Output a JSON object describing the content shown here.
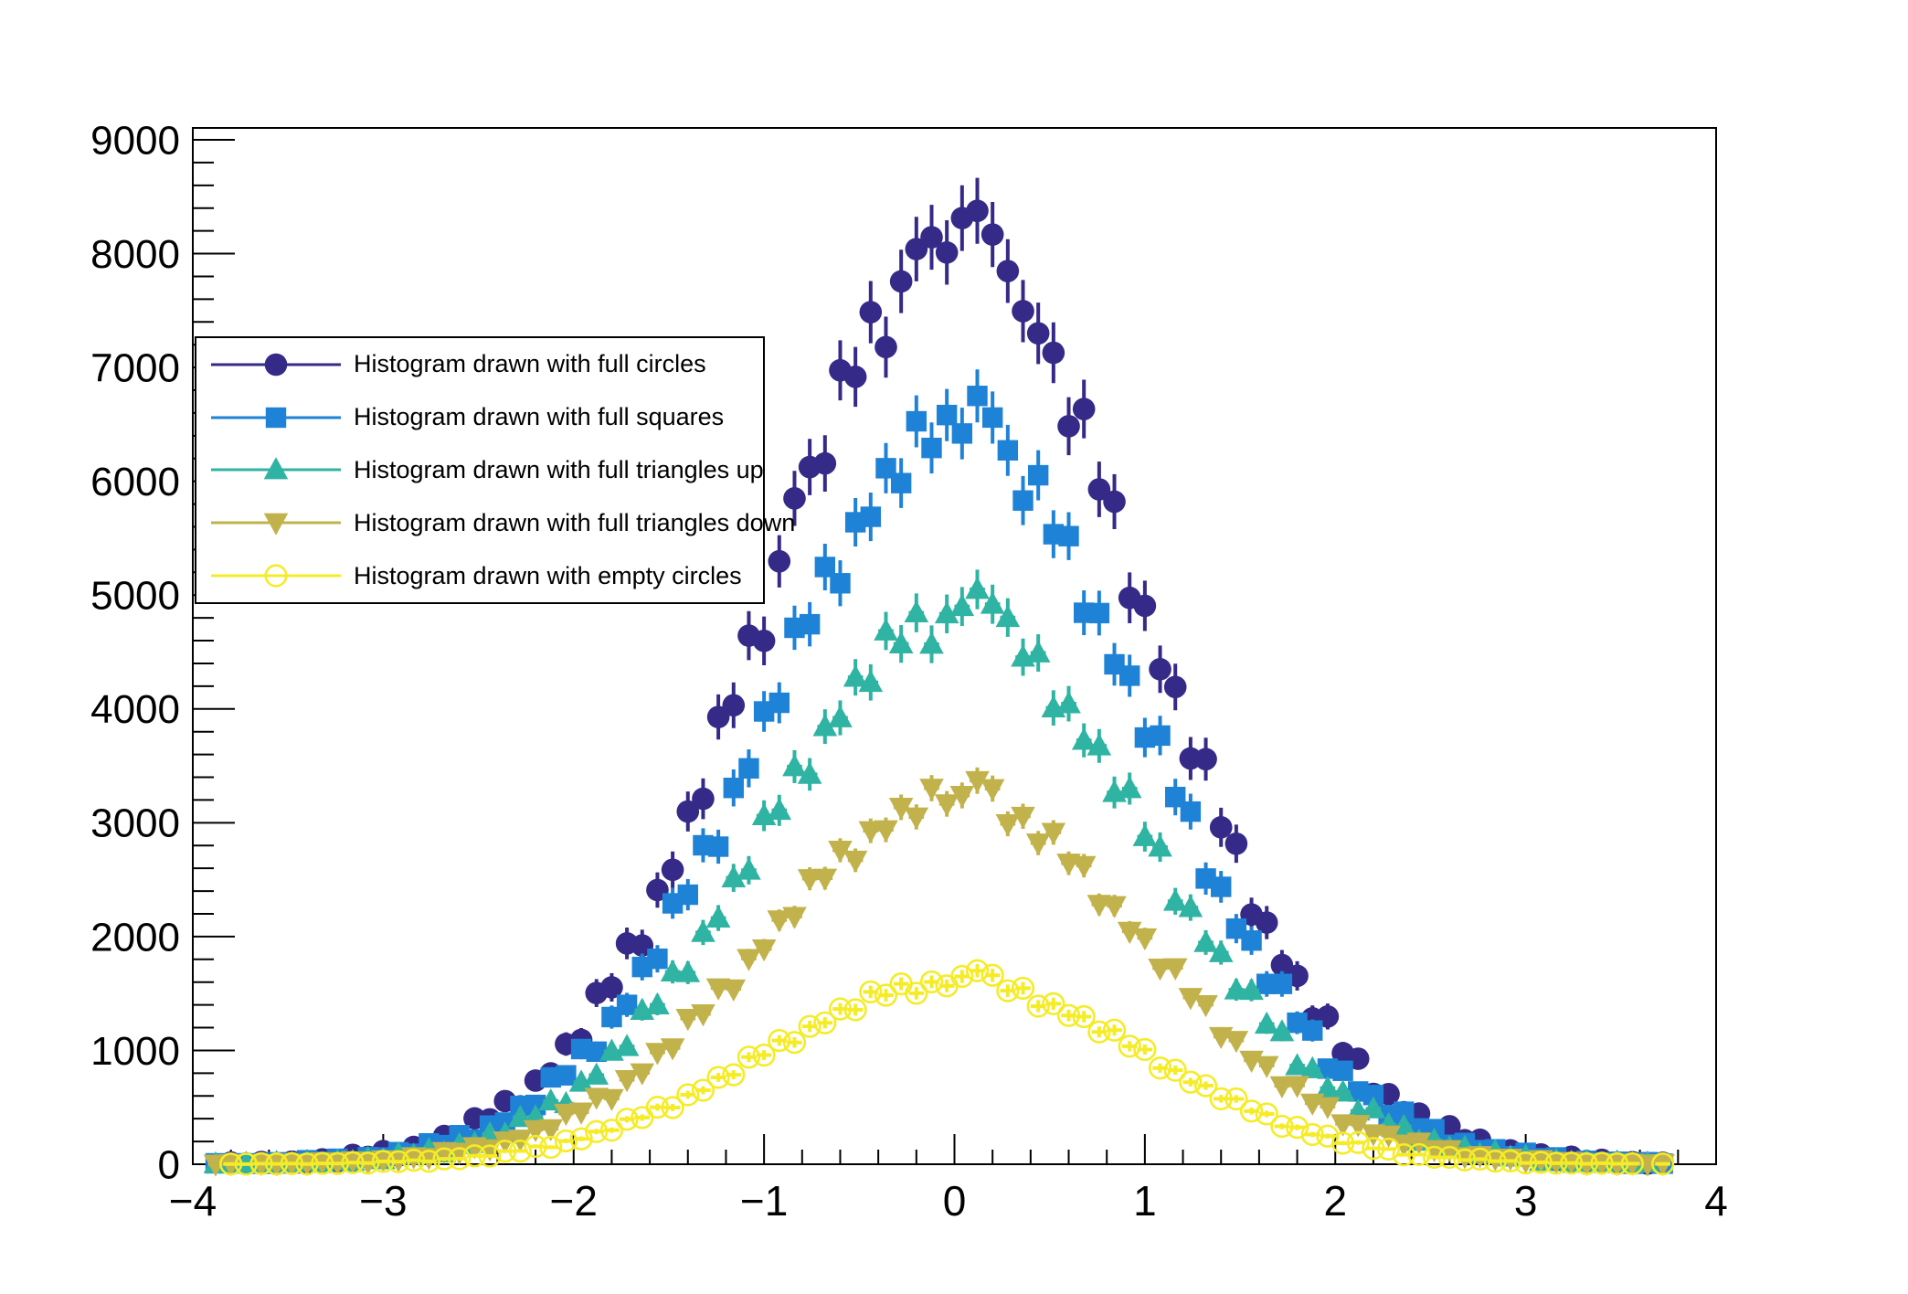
{
  "window": {
    "background": "#ffffff",
    "frame_color": "#000000"
  },
  "axes": {
    "x": {
      "min": -4,
      "max": 4,
      "major_step": 1,
      "minor_step": 0.2,
      "major_tick_labels": [
        "−4",
        "−3",
        "−2",
        "−1",
        "0",
        "1",
        "2",
        "3",
        "4"
      ]
    },
    "y": {
      "min": 0,
      "max": 9104,
      "major_step": 1000,
      "minor_step": 200,
      "major_tick_labels": [
        "0",
        "1000",
        "2000",
        "3000",
        "4000",
        "5000",
        "6000",
        "7000",
        "8000",
        "9000"
      ]
    }
  },
  "legend": {
    "entries": [
      {
        "label": "Histogram drawn with full circles",
        "series": 0
      },
      {
        "label": "Histogram drawn with full squares",
        "series": 1
      },
      {
        "label": "Histogram drawn with full triangles up",
        "series": 2
      },
      {
        "label": "Histogram drawn with full triangles down",
        "series": 3
      },
      {
        "label": "Histogram drawn with empty circles",
        "series": 4
      }
    ]
  },
  "chart_data": {
    "type": "scatter",
    "title": "",
    "xlabel": "",
    "ylabel": "",
    "xlim": [
      -4,
      4
    ],
    "ylim": [
      0,
      9104
    ],
    "grid": false,
    "legend_position": "upper-left",
    "binning": {
      "n_bins": 100,
      "x_min": -4,
      "x_max": 4,
      "bin_width": 0.08,
      "first_bin_center": -3.96
    },
    "error_model": "error_half_length = sqrt(error_scale * value); horizontal error = half bin width",
    "series": [
      {
        "name": "Histogram drawn with full circles",
        "marker": "full-circle",
        "color": "#352a87",
        "error_scale": 10,
        "values": [
          0,
          0,
          15,
          6,
          20,
          1,
          23,
          17,
          43,
          28,
          82,
          65,
          116,
          75,
          152,
          156,
          248,
          236,
          403,
          394,
          555,
          508,
          735,
          798,
          1056,
          1092,
          1504,
          1554,
          1940,
          1922,
          2409,
          2587,
          3099,
          3211,
          3929,
          4032,
          4644,
          4598,
          5297,
          5850,
          6125,
          6157,
          6975,
          6918,
          7486,
          7179,
          7756,
          8040,
          8144,
          8010,
          8312,
          8376,
          8168,
          7847,
          7495,
          7300,
          7129,
          6484,
          6635,
          5929,
          5821,
          4976,
          4906,
          4349,
          4193,
          3565,
          3559,
          2960,
          2816,
          2194,
          2123,
          1750,
          1655,
          1282,
          1298,
          976,
          927,
          618,
          616,
          457,
          445,
          292,
          334,
          211,
          215,
          99,
          122,
          74,
          86,
          38,
          66,
          28,
          39,
          4,
          18,
          6,
          13,
          0,
          0,
          0
        ]
      },
      {
        "name": "Histogram drawn with full squares",
        "marker": "full-square",
        "color": "#1e82d6",
        "error_scale": 8,
        "values": [
          0,
          8,
          0,
          8,
          4,
          17,
          7,
          35,
          23,
          48,
          22,
          62,
          59,
          106,
          92,
          183,
          168,
          255,
          216,
          340,
          366,
          512,
          521,
          763,
          781,
          1012,
          989,
          1293,
          1400,
          1733,
          1805,
          2292,
          2368,
          2802,
          2790,
          3306,
          3478,
          3978,
          4054,
          4713,
          4744,
          5247,
          5104,
          5640,
          5688,
          6115,
          5984,
          6527,
          6293,
          6582,
          6420,
          6750,
          6560,
          6272,
          5831,
          6053,
          5535,
          5518,
          4845,
          4842,
          4392,
          4292,
          3749,
          3766,
          3226,
          3098,
          2510,
          2437,
          2070,
          1965,
          1584,
          1584,
          1243,
          1175,
          840,
          821,
          639,
          608,
          432,
          461,
          315,
          308,
          171,
          187,
          125,
          131,
          71,
          100,
          52,
          60,
          16,
          30,
          14,
          22,
          4,
          18,
          5,
          0,
          0,
          0
        ]
      },
      {
        "name": "Histogram drawn with full triangles up",
        "marker": "full-triangle-up",
        "color": "#2fb3a3",
        "error_scale": 6,
        "values": [
          0,
          4,
          1,
          8,
          2,
          17,
          9,
          23,
          7,
          29,
          26,
          52,
          40,
          91,
          80,
          129,
          101,
          172,
          183,
          267,
          266,
          411,
          416,
          556,
          532,
          721,
          783,
          993,
          1034,
          1352,
          1400,
          1689,
          1683,
          2036,
          2163,
          2516,
          2583,
          3062,
          3109,
          3493,
          3425,
          3845,
          3922,
          4278,
          4233,
          4685,
          4571,
          4844,
          4568,
          4835,
          4900,
          5050,
          4920,
          4803,
          4455,
          4492,
          4009,
          4046,
          3724,
          3675,
          3266,
          3300,
          2878,
          2786,
          2310,
          2255,
          1948,
          1859,
          1532,
          1528,
          1231,
          1164,
          866,
          839,
          668,
          634,
          468,
          487,
          347,
          333,
          202,
          211,
          147,
          149,
          89,
          113,
          63,
          69,
          24,
          37,
          19,
          26,
          8,
          21,
          7,
          12,
          0,
          0,
          0,
          0
        ]
      },
      {
        "name": "Histogram drawn with full triangles down",
        "marker": "full-triangle-down",
        "color": "#c2b24b",
        "error_scale": 4,
        "values": [
          0,
          1,
          5,
          0,
          5,
          4,
          10,
          6,
          22,
          15,
          30,
          16,
          39,
          38,
          66,
          59,
          111,
          105,
          154,
          135,
          205,
          221,
          304,
          312,
          447,
          458,
          588,
          577,
          743,
          803,
          982,
          1022,
          1281,
          1321,
          1549,
          1540,
          1807,
          1892,
          2146,
          2177,
          2509,
          2513,
          2759,
          2671,
          2930,
          2938,
          3136,
          3051,
          3304,
          3166,
          3240,
          3370,
          3300,
          2991,
          3057,
          2822,
          2915,
          2645,
          2624,
          2283,
          2272,
          2046,
          1989,
          1723,
          1726,
          1465,
          1402,
          1122,
          1088,
          914,
          867,
          689,
          692,
          537,
          506,
          355,
          349,
          267,
          256,
          177,
          194,
          128,
          128,
          67,
          76,
          49,
          53,
          27,
          41,
          20,
          24,
          6,
          12,
          5,
          9,
          2,
          5,
          0,
          0,
          0
        ]
      },
      {
        "name": "Histogram drawn with empty circles",
        "marker": "open-circle",
        "color": "#f5ec27",
        "error_scale": 2,
        "values": [
          0,
          0,
          2,
          1,
          5,
          3,
          6,
          2,
          7,
          6,
          14,
          10,
          25,
          22,
          35,
          26,
          47,
          49,
          74,
          72,
          115,
          116,
          157,
          149,
          205,
          223,
          287,
          299,
          395,
          410,
          501,
          498,
          610,
          650,
          763,
          786,
          941,
          959,
          1087,
          1070,
          1211,
          1242,
          1364,
          1357,
          1514,
          1485,
          1585,
          1502,
          1602,
          1567,
          1650,
          1700,
          1660,
          1524,
          1546,
          1389,
          1410,
          1307,
          1297,
          1162,
          1178,
          1037,
          1008,
          845,
          826,
          721,
          690,
          575,
          574,
          467,
          442,
          333,
          324,
          261,
          247,
          185,
          191,
          139,
          133,
          83,
          85,
          61,
          60,
          37,
          45,
          27,
          29,
          11,
          16,
          9,
          10,
          4,
          9,
          4,
          5,
          0,
          3,
          0,
          0,
          0,
          0
        ]
      }
    ]
  }
}
